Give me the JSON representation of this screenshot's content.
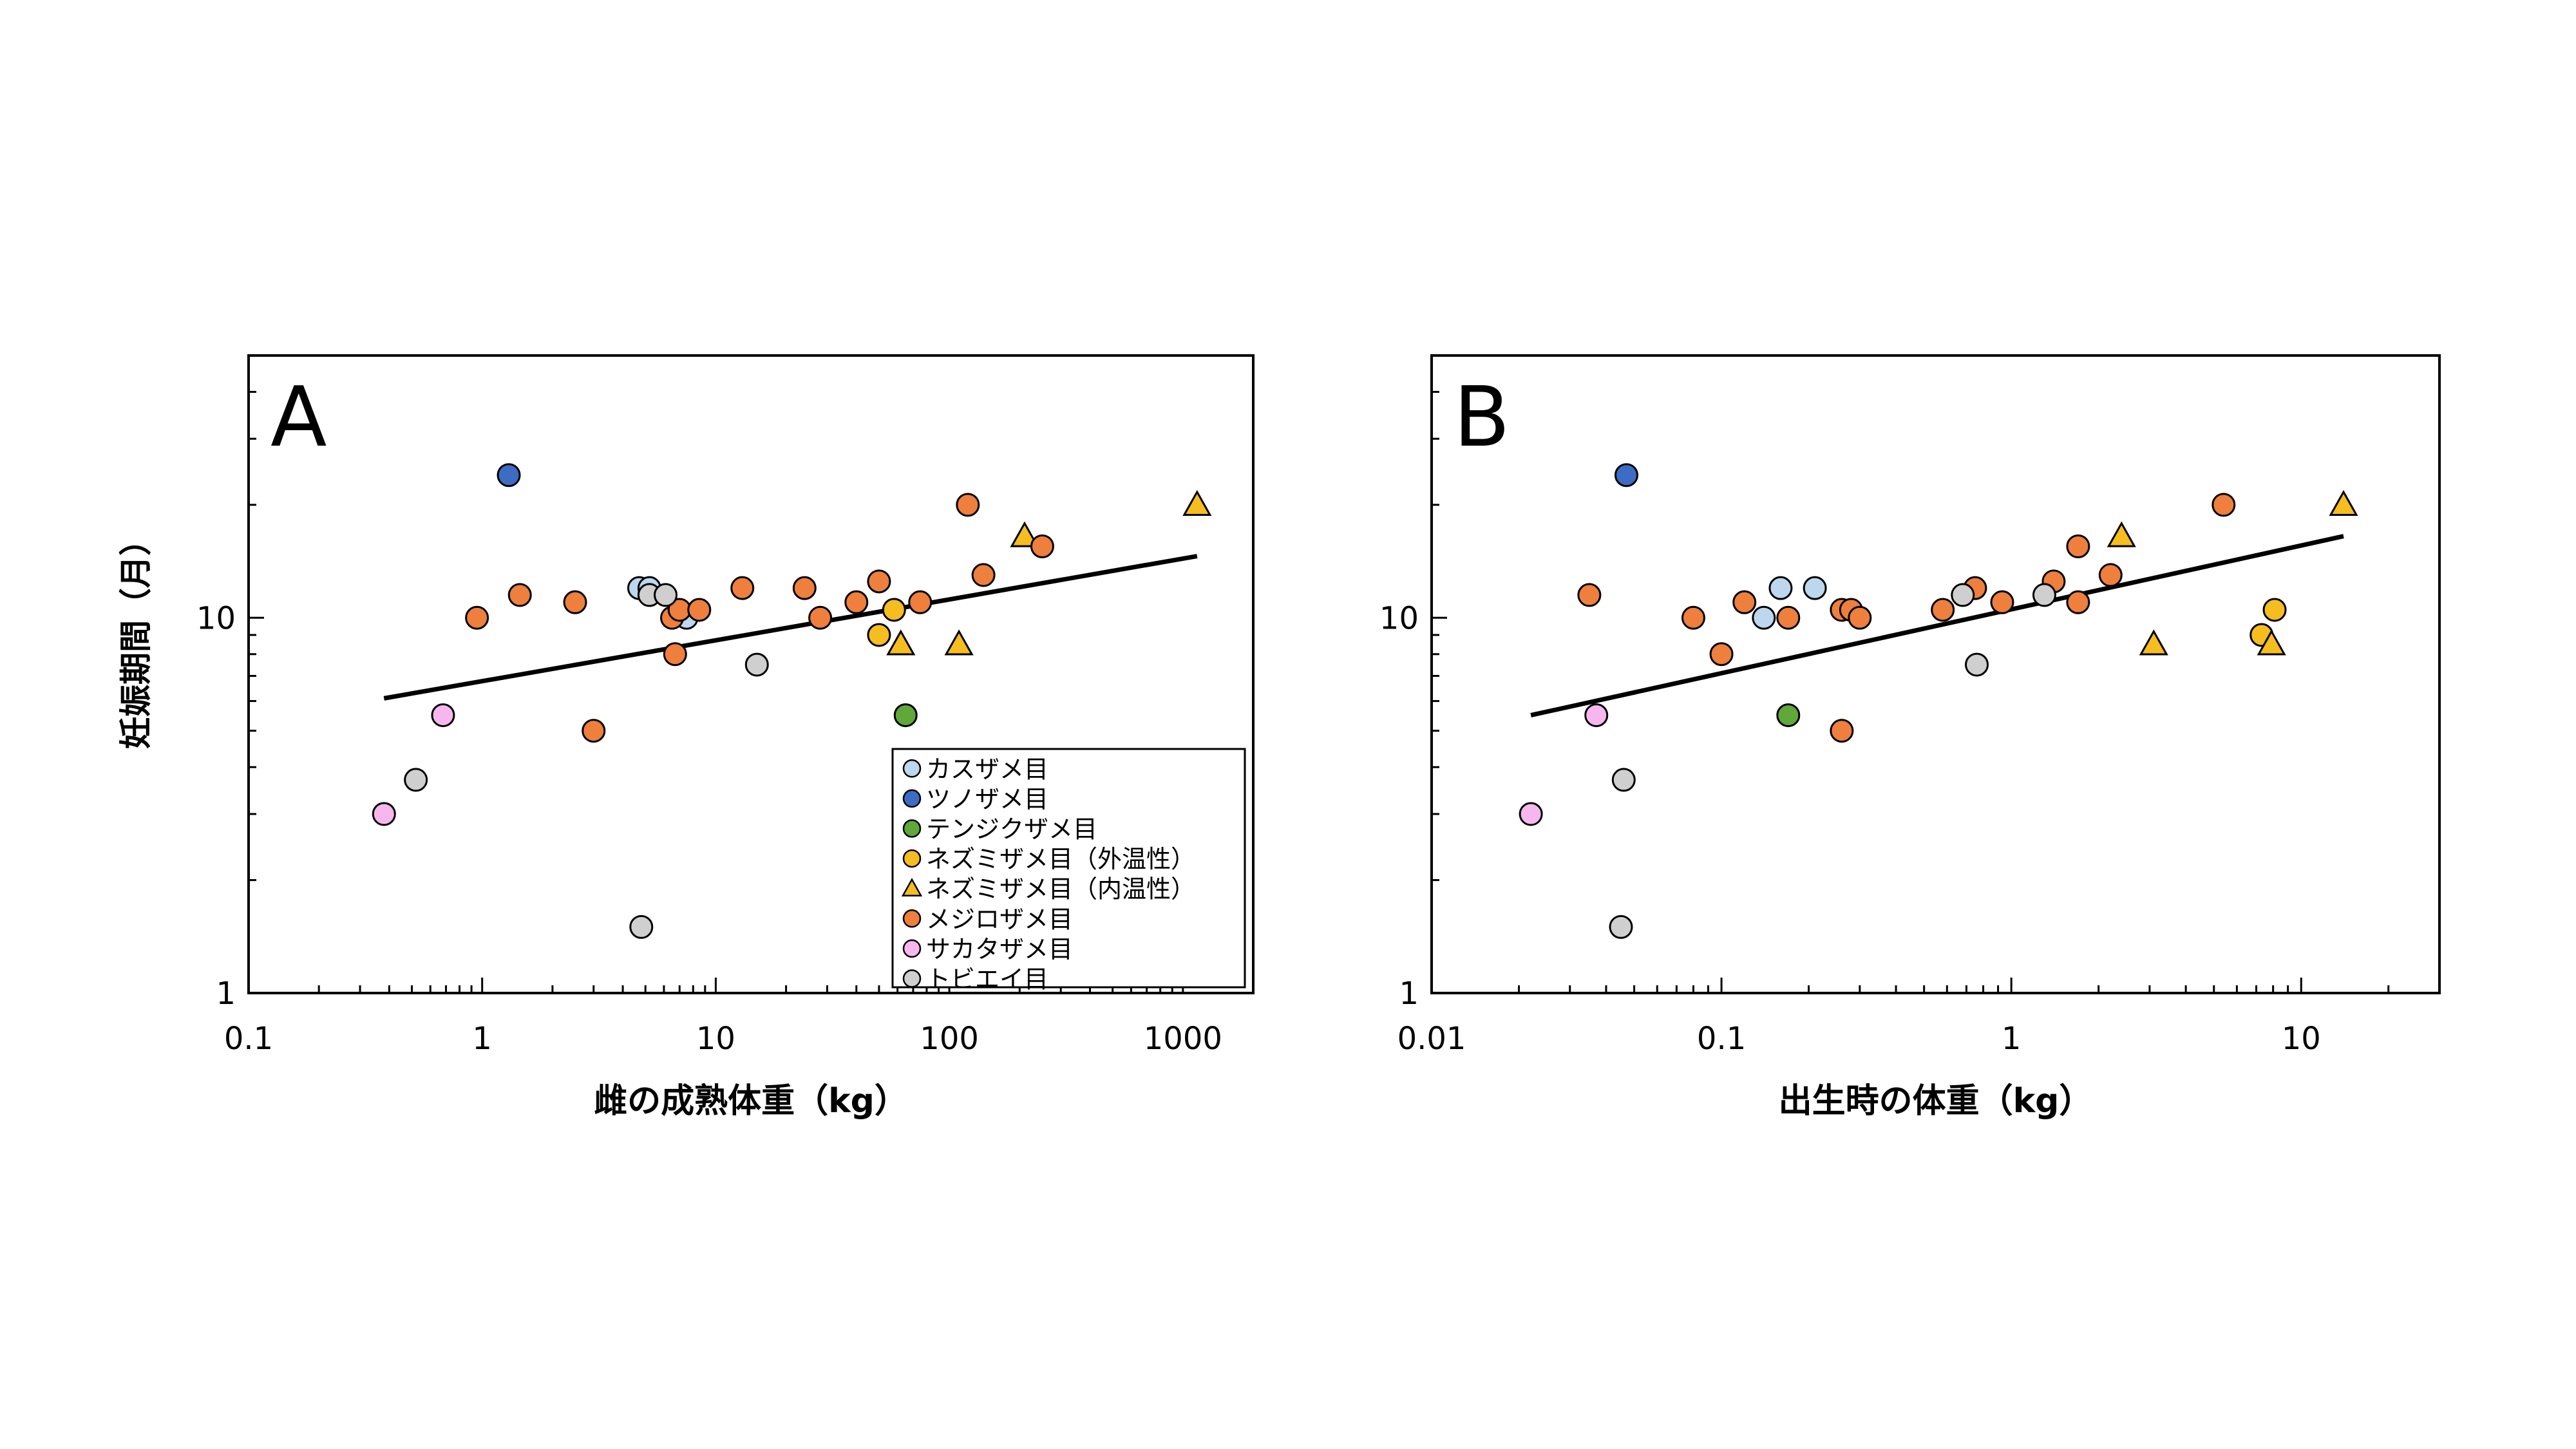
{
  "shared_ylabel": "妊娠期間（月）",
  "colors": {
    "kasuzame": "#bcd7ee",
    "tsunozame": "#3d6cc4",
    "tenjikuzame": "#5fa839",
    "nezumizame_ecto": "#f5bd1f",
    "nezumizame_endo": "#f5bd1f",
    "mejirozame": "#ee7f3c",
    "sakatazame": "#f7b7ee",
    "tobiei": "#cfcfcf",
    "fit_line": "#000000"
  },
  "legend": [
    {
      "key": "kasuzame",
      "label": "カスザメ目",
      "shape": "circle"
    },
    {
      "key": "tsunozame",
      "label": "ツノザメ目",
      "shape": "circle"
    },
    {
      "key": "tenjikuzame",
      "label": "テンジクザメ目",
      "shape": "circle"
    },
    {
      "key": "nezumizame_ecto",
      "label": "ネズミザメ目（外温性）",
      "shape": "circle"
    },
    {
      "key": "nezumizame_endo",
      "label": "ネズミザメ目（内温性）",
      "shape": "triangle"
    },
    {
      "key": "mejirozame",
      "label": "メジロザメ目",
      "shape": "circle"
    },
    {
      "key": "sakatazame",
      "label": "サカタザメ目",
      "shape": "circle"
    },
    {
      "key": "tobiei",
      "label": "トビエイ目",
      "shape": "circle"
    }
  ],
  "chart_data": [
    {
      "type": "scatter",
      "panel_label": "A",
      "xlabel": "雌の成熟体重（kg）",
      "ylabel": "妊娠期間（月）",
      "x_scale": "log",
      "y_scale": "log",
      "xlim": [
        0.1,
        2000
      ],
      "ylim": [
        1,
        50
      ],
      "x_ticks": [
        {
          "value": 0.1,
          "label": "0.1"
        },
        {
          "value": 1,
          "label": "1"
        },
        {
          "value": 10,
          "label": "10"
        },
        {
          "value": 100,
          "label": "100"
        },
        {
          "value": 1000,
          "label": "1000"
        }
      ],
      "y_ticks": [
        {
          "value": 1,
          "label": "1"
        },
        {
          "value": 10,
          "label": "10"
        }
      ],
      "grid": false,
      "legend_position": "bottom-right",
      "trendline": [
        [
          0.38,
          6.1
        ],
        [
          1150,
          14.6
        ]
      ],
      "series": [
        {
          "key": "kasuzame",
          "points": [
            [
              4.7,
              12
            ],
            [
              5.2,
              12
            ],
            [
              7.5,
              10
            ]
          ]
        },
        {
          "key": "tsunozame",
          "points": [
            [
              1.3,
              24
            ]
          ]
        },
        {
          "key": "tenjikuzame",
          "points": [
            [
              65,
              5.5
            ]
          ]
        },
        {
          "key": "nezumizame_ecto",
          "points": [
            [
              50,
              9
            ],
            [
              58,
              10.5
            ]
          ]
        },
        {
          "key": "nezumizame_endo",
          "points": [
            [
              62,
              8.5
            ],
            [
              110,
              8.5
            ],
            [
              210,
              16.5
            ],
            [
              1150,
              20
            ]
          ]
        },
        {
          "key": "mejirozame",
          "points": [
            [
              0.95,
              10
            ],
            [
              1.45,
              11.5
            ],
            [
              2.5,
              11
            ],
            [
              3,
              5
            ],
            [
              6.5,
              10
            ],
            [
              6.7,
              8
            ],
            [
              7,
              10.5
            ],
            [
              8.5,
              10.5
            ],
            [
              13,
              12
            ],
            [
              24,
              12
            ],
            [
              28,
              10
            ],
            [
              40,
              11
            ],
            [
              50,
              12.5
            ],
            [
              75,
              11
            ],
            [
              120,
              20
            ],
            [
              140,
              13
            ],
            [
              250,
              15.5
            ]
          ]
        },
        {
          "key": "sakatazame",
          "points": [
            [
              0.38,
              3
            ],
            [
              0.68,
              5.5
            ]
          ]
        },
        {
          "key": "tobiei",
          "points": [
            [
              0.52,
              3.7
            ],
            [
              4.8,
              1.5
            ],
            [
              5.2,
              11.5
            ],
            [
              6.1,
              11.5
            ],
            [
              15,
              7.5
            ]
          ]
        }
      ]
    },
    {
      "type": "scatter",
      "panel_label": "B",
      "xlabel": "出生時の体重（kg）",
      "ylabel": "妊娠期間（月）",
      "x_scale": "log",
      "y_scale": "log",
      "xlim": [
        0.01,
        30
      ],
      "ylim": [
        1,
        50
      ],
      "x_ticks": [
        {
          "value": 0.01,
          "label": "0.01"
        },
        {
          "value": 0.1,
          "label": "0.1"
        },
        {
          "value": 1,
          "label": "1"
        },
        {
          "value": 10,
          "label": "10"
        }
      ],
      "y_ticks": [
        {
          "value": 1,
          "label": "1"
        },
        {
          "value": 10,
          "label": "10"
        }
      ],
      "grid": false,
      "trendline": [
        [
          0.022,
          5.5
        ],
        [
          14,
          16.5
        ]
      ],
      "series": [
        {
          "key": "kasuzame",
          "points": [
            [
              0.14,
              10
            ],
            [
              0.16,
              12
            ],
            [
              0.21,
              12
            ]
          ]
        },
        {
          "key": "tsunozame",
          "points": [
            [
              0.047,
              24
            ]
          ]
        },
        {
          "key": "tenjikuzame",
          "points": [
            [
              0.17,
              5.5
            ]
          ]
        },
        {
          "key": "nezumizame_ecto",
          "points": [
            [
              7.3,
              9
            ],
            [
              8.1,
              10.5
            ]
          ]
        },
        {
          "key": "nezumizame_endo",
          "points": [
            [
              2.4,
              16.5
            ],
            [
              3.1,
              8.5
            ],
            [
              7.9,
              8.5
            ],
            [
              14,
              20
            ]
          ]
        },
        {
          "key": "mejirozame",
          "points": [
            [
              0.035,
              11.5
            ],
            [
              0.08,
              10
            ],
            [
              0.1,
              8
            ],
            [
              0.12,
              11
            ],
            [
              0.17,
              10
            ],
            [
              0.26,
              10.5
            ],
            [
              0.26,
              5
            ],
            [
              0.28,
              10.5
            ],
            [
              0.3,
              10
            ],
            [
              0.58,
              10.5
            ],
            [
              0.75,
              12
            ],
            [
              0.93,
              11
            ],
            [
              1.4,
              12.5
            ],
            [
              1.7,
              15.5
            ],
            [
              1.7,
              11
            ],
            [
              2.2,
              13
            ],
            [
              5.4,
              20
            ]
          ]
        },
        {
          "key": "sakatazame",
          "points": [
            [
              0.022,
              3
            ],
            [
              0.037,
              5.5
            ]
          ]
        },
        {
          "key": "tobiei",
          "points": [
            [
              0.045,
              1.5
            ],
            [
              0.046,
              3.7
            ],
            [
              0.68,
              11.5
            ],
            [
              0.76,
              7.5
            ],
            [
              1.3,
              11.5
            ]
          ]
        }
      ]
    }
  ]
}
